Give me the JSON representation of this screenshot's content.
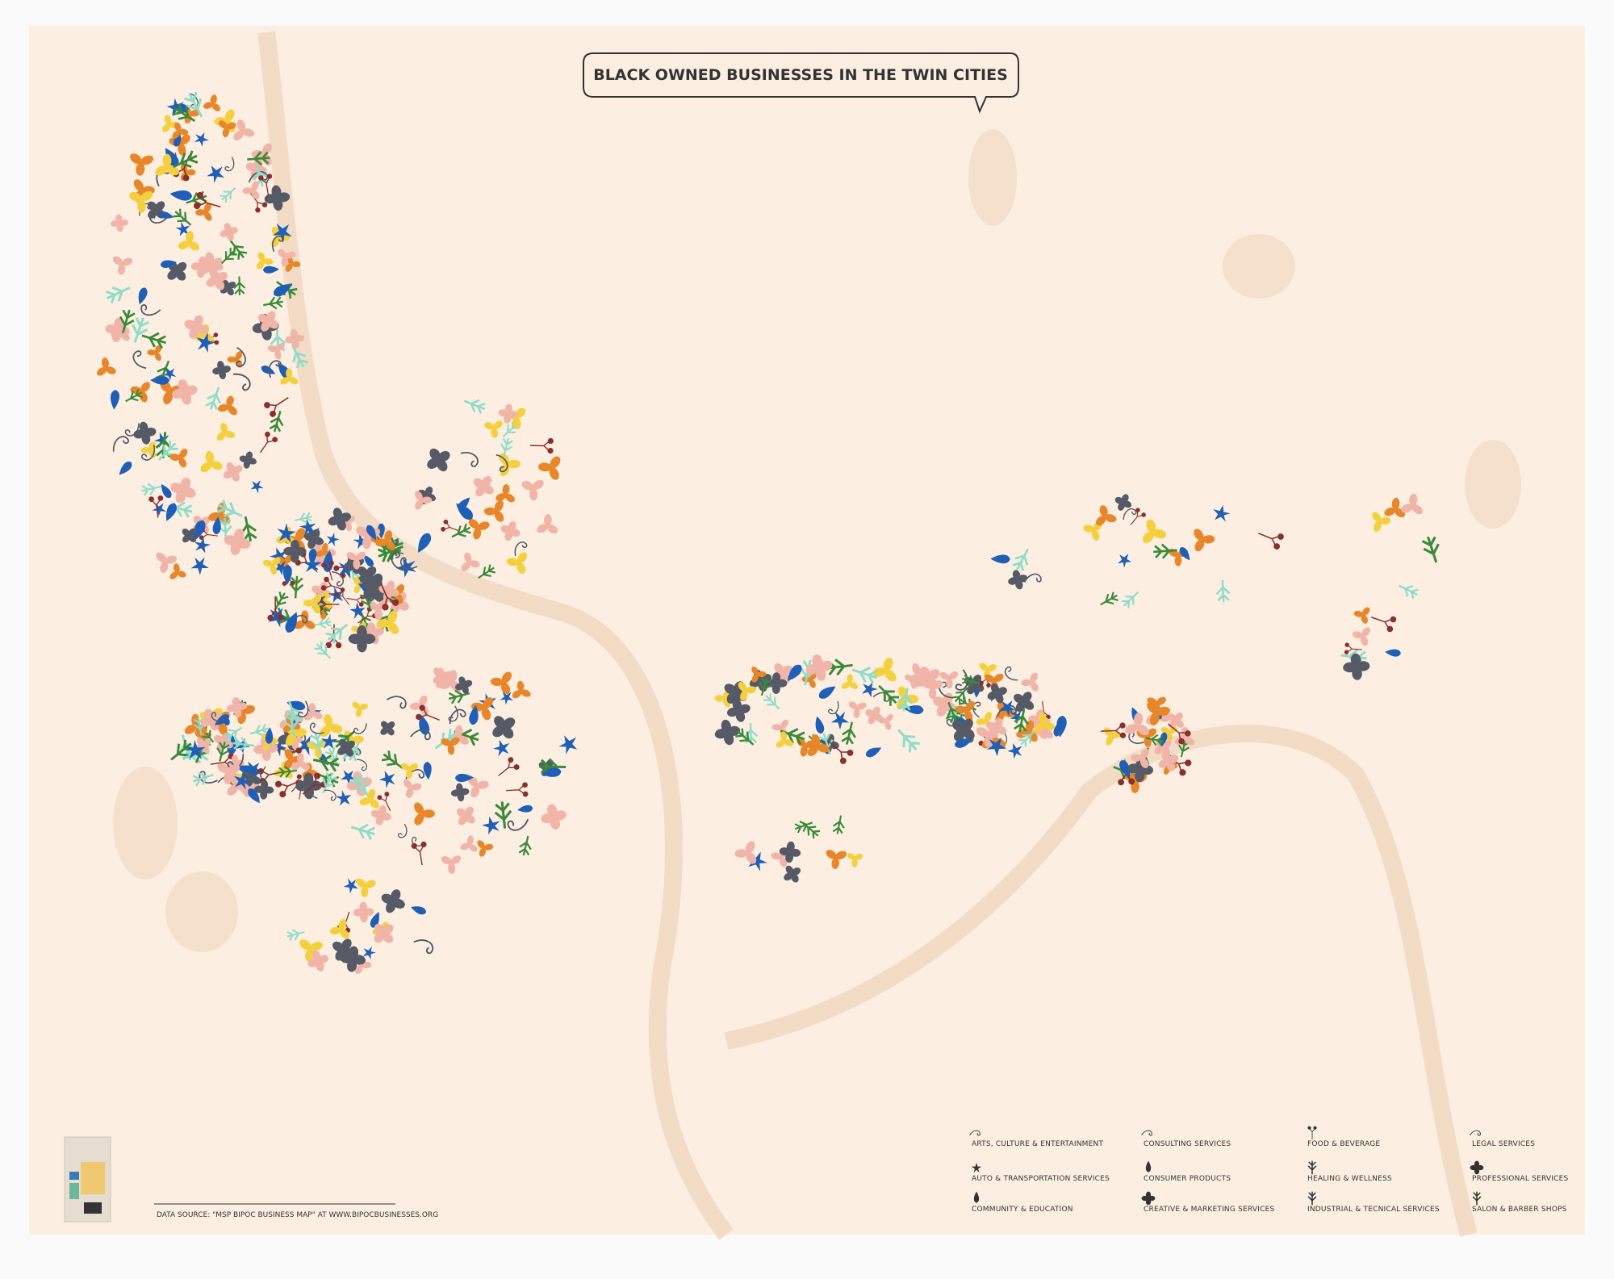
{
  "title": "BLACK OWNED BUSINESSES IN THE TWIN CITIES",
  "legend": [
    [
      "ARTS, CULTURE & ENTERTAINMENT",
      "AUTO & TRANSPORTATION SERVICES",
      "COMMUNITY & EDUCATION"
    ],
    [
      "CONSULTING SERVICES",
      "CONSUMER PRODUCTS",
      "CREATIVE & MARKETING SERVICES"
    ],
    [
      "FOOD & BEVERAGE",
      "HEALING & WELLNESS",
      "INDUSTRIAL & TECNICAL SERVICES"
    ],
    [
      "LEGAL SERVICES",
      "PROFESSIONAL SERVICES",
      "SALON & BARBER SHOPS"
    ]
  ],
  "source": "DATA SOURCE: \"MSP BIPOC BUSINESS MAP\" AT WWW.BIPOCBUSINESSES.ORG"
}
